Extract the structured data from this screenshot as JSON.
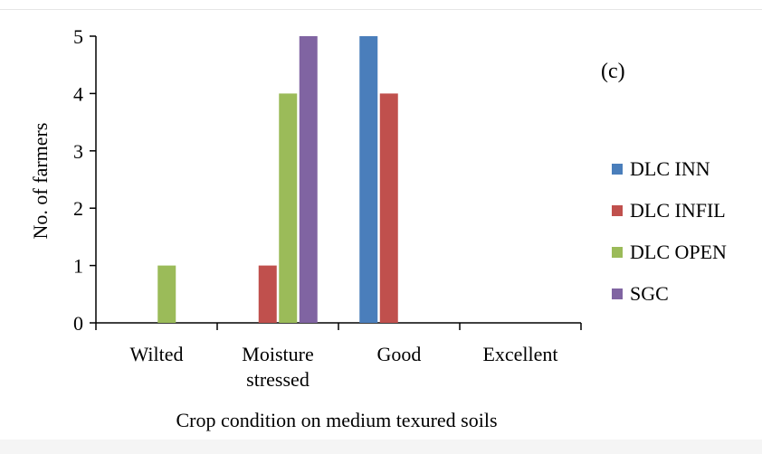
{
  "panel_label": "(c)",
  "chart_data": {
    "type": "bar",
    "title": "",
    "xlabel": "Crop condition on medium texured soils",
    "ylabel": "No. of farmers",
    "categories": [
      [
        "Wilted"
      ],
      [
        "Moisture",
        "stressed"
      ],
      [
        "Good"
      ],
      [
        "Excellent"
      ]
    ],
    "series": [
      {
        "name": "DLC INN",
        "color": "#4a7ebb",
        "values": [
          0,
          0,
          5,
          0
        ]
      },
      {
        "name": "DLC INFIL",
        "color": "#c0504d",
        "values": [
          0,
          1,
          4,
          0
        ]
      },
      {
        "name": "DLC OPEN",
        "color": "#9bbb59",
        "values": [
          1,
          4,
          0,
          0
        ]
      },
      {
        "name": "SGC",
        "color": "#8064a2",
        "values": [
          0,
          5,
          0,
          0
        ]
      }
    ],
    "ylim": [
      0,
      5
    ],
    "yticks": [
      "0",
      "1",
      "2",
      "3",
      "4",
      "5"
    ],
    "grid": false,
    "legend_position": "right"
  }
}
